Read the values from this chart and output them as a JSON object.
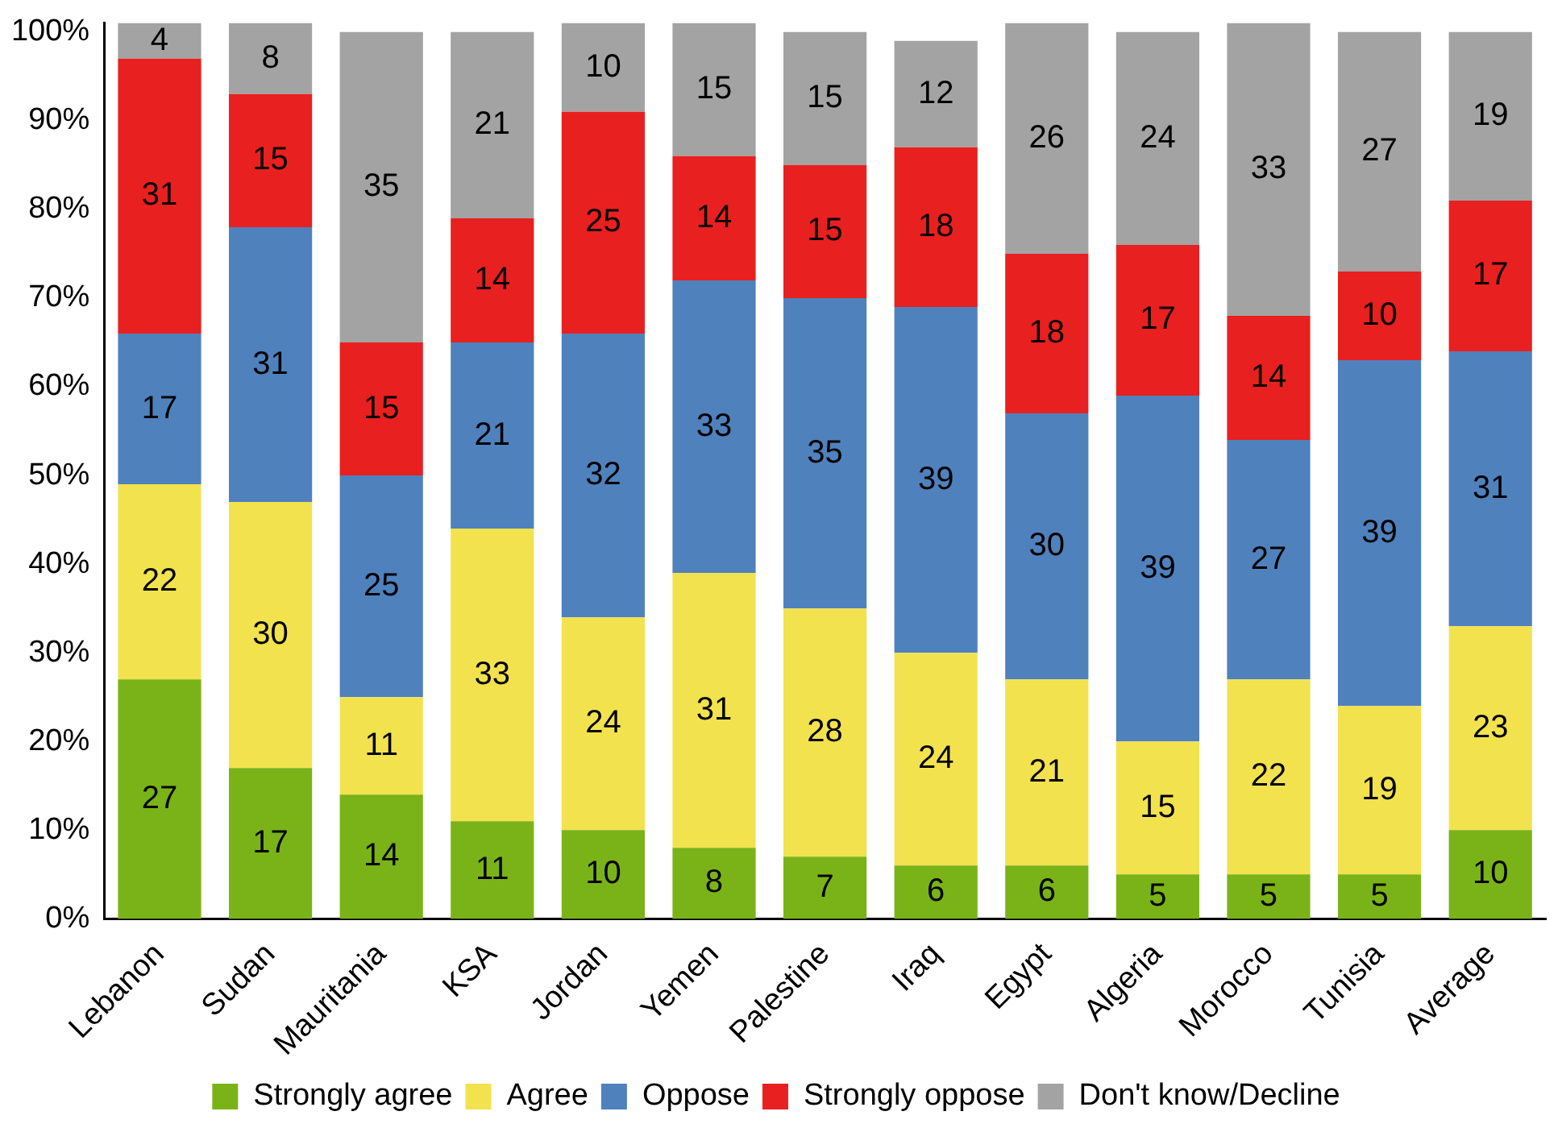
{
  "chart_data": {
    "type": "bar",
    "stacked": true,
    "categories": [
      "Lebanon",
      "Sudan",
      "Mauritania",
      "KSA",
      "Jordan",
      "Yemen",
      "Palestine",
      "Iraq",
      "Egypt",
      "Algeria",
      "Morocco",
      "Tunisia",
      "Average"
    ],
    "series": [
      {
        "name": "Strongly agree",
        "color": "#7ab317",
        "values": [
          27,
          17,
          14,
          11,
          10,
          8,
          7,
          6,
          6,
          5,
          5,
          5,
          10
        ]
      },
      {
        "name": "Agree",
        "color": "#f2e24e",
        "values": [
          22,
          30,
          11,
          33,
          24,
          31,
          28,
          24,
          21,
          15,
          22,
          19,
          23
        ]
      },
      {
        "name": "Oppose",
        "color": "#4f81bd",
        "values": [
          17,
          31,
          25,
          21,
          32,
          33,
          35,
          39,
          30,
          39,
          27,
          39,
          31
        ]
      },
      {
        "name": "Strongly oppose",
        "color": "#e8201f",
        "values": [
          31,
          15,
          15,
          14,
          25,
          14,
          15,
          18,
          18,
          17,
          14,
          10,
          17
        ]
      },
      {
        "name": "Don't know/Decline",
        "color": "#a3a3a3",
        "values": [
          4,
          8,
          35,
          21,
          10,
          15,
          15,
          12,
          26,
          24,
          33,
          27,
          19
        ]
      }
    ],
    "ylim": [
      0,
      101
    ],
    "yticks": [
      {
        "value": 0,
        "label": "0%"
      },
      {
        "value": 10,
        "label": "10%"
      },
      {
        "value": 20,
        "label": "20%"
      },
      {
        "value": 30,
        "label": "30%"
      },
      {
        "value": 40,
        "label": "40%"
      },
      {
        "value": 50,
        "label": "50%"
      },
      {
        "value": 60,
        "label": "60%"
      },
      {
        "value": 70,
        "label": "70%"
      },
      {
        "value": 80,
        "label": "80%"
      },
      {
        "value": 90,
        "label": "90%"
      },
      {
        "value": 100,
        "label": "100%"
      }
    ],
    "grid": false,
    "legend": "bottom",
    "data_labels": true
  }
}
